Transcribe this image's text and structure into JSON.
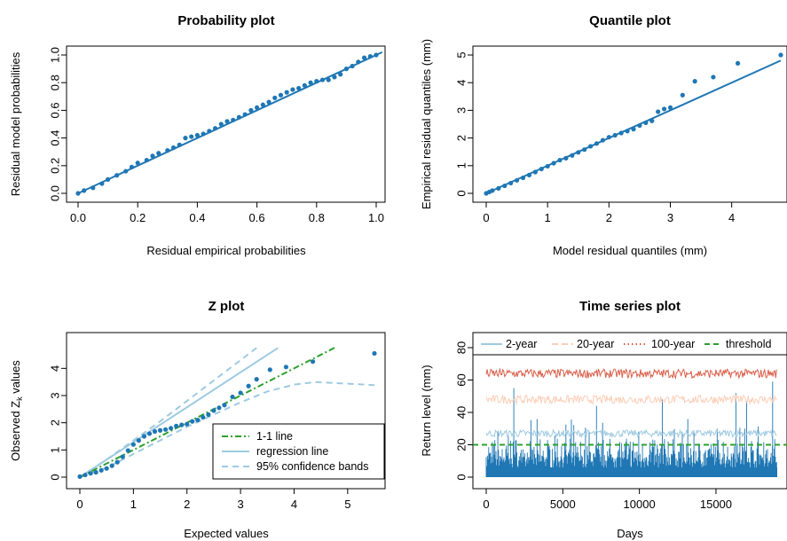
{
  "colors": {
    "points": "#1f77b4",
    "line": "#1f77b4",
    "one_to_one": "#2ca02c",
    "regression": "#9ecae1",
    "bands": "#9ecae1",
    "level2": "#9ecae1",
    "level20": "#fdcdb5",
    "level100": "#d95f4a",
    "threshold": "#2ca02c",
    "series": "#1f77b4"
  },
  "chart_data": [
    {
      "type": "scatter",
      "title": "Probability plot",
      "xlabel": "Residual empirical probabilities",
      "ylabel": "Residual model probabilities",
      "xlim": [
        0,
        1
      ],
      "ylim": [
        0,
        1
      ],
      "xticks": [
        "0.0",
        "0.2",
        "0.4",
        "0.6",
        "0.8",
        "1.0"
      ],
      "yticks": [
        "0.0",
        "0.2",
        "0.4",
        "0.6",
        "0.8",
        "1.0"
      ],
      "reference_line": "1-1",
      "points": [
        [
          0.0,
          0.0
        ],
        [
          0.02,
          0.02
        ],
        [
          0.05,
          0.04
        ],
        [
          0.08,
          0.07
        ],
        [
          0.1,
          0.1
        ],
        [
          0.13,
          0.13
        ],
        [
          0.16,
          0.16
        ],
        [
          0.18,
          0.19
        ],
        [
          0.2,
          0.22
        ],
        [
          0.23,
          0.24
        ],
        [
          0.25,
          0.27
        ],
        [
          0.27,
          0.29
        ],
        [
          0.3,
          0.31
        ],
        [
          0.32,
          0.33
        ],
        [
          0.34,
          0.35
        ],
        [
          0.36,
          0.4
        ],
        [
          0.38,
          0.41
        ],
        [
          0.4,
          0.42
        ],
        [
          0.42,
          0.43
        ],
        [
          0.44,
          0.45
        ],
        [
          0.46,
          0.47
        ],
        [
          0.48,
          0.5
        ],
        [
          0.5,
          0.52
        ],
        [
          0.52,
          0.53
        ],
        [
          0.54,
          0.55
        ],
        [
          0.56,
          0.57
        ],
        [
          0.58,
          0.6
        ],
        [
          0.6,
          0.62
        ],
        [
          0.62,
          0.64
        ],
        [
          0.64,
          0.66
        ],
        [
          0.66,
          0.69
        ],
        [
          0.68,
          0.71
        ],
        [
          0.7,
          0.73
        ],
        [
          0.72,
          0.75
        ],
        [
          0.74,
          0.76
        ],
        [
          0.76,
          0.78
        ],
        [
          0.78,
          0.8
        ],
        [
          0.8,
          0.81
        ],
        [
          0.82,
          0.82
        ],
        [
          0.84,
          0.82
        ],
        [
          0.86,
          0.84
        ],
        [
          0.88,
          0.86
        ],
        [
          0.9,
          0.9
        ],
        [
          0.92,
          0.92
        ],
        [
          0.94,
          0.95
        ],
        [
          0.96,
          0.98
        ],
        [
          0.98,
          0.99
        ],
        [
          1.0,
          1.0
        ]
      ]
    },
    {
      "type": "scatter",
      "title": "Quantile plot",
      "xlabel": "Model residual quantiles (mm)",
      "ylabel": "Empirical residual quantiles (mm)",
      "xlim": [
        0,
        4.8
      ],
      "ylim": [
        0,
        5
      ],
      "xticks": [
        "0",
        "1",
        "2",
        "3",
        "4"
      ],
      "yticks": [
        "0",
        "1",
        "2",
        "3",
        "4",
        "5"
      ],
      "reference_line": "1-1",
      "points": [
        [
          0.0,
          0.0
        ],
        [
          0.05,
          0.05
        ],
        [
          0.1,
          0.1
        ],
        [
          0.2,
          0.18
        ],
        [
          0.3,
          0.27
        ],
        [
          0.4,
          0.37
        ],
        [
          0.5,
          0.47
        ],
        [
          0.6,
          0.56
        ],
        [
          0.7,
          0.66
        ],
        [
          0.8,
          0.77
        ],
        [
          0.9,
          0.88
        ],
        [
          1.0,
          0.98
        ],
        [
          1.1,
          1.09
        ],
        [
          1.2,
          1.2
        ],
        [
          1.3,
          1.27
        ],
        [
          1.4,
          1.37
        ],
        [
          1.5,
          1.48
        ],
        [
          1.6,
          1.58
        ],
        [
          1.7,
          1.7
        ],
        [
          1.8,
          1.8
        ],
        [
          1.9,
          1.92
        ],
        [
          2.0,
          2.03
        ],
        [
          2.1,
          2.1
        ],
        [
          2.2,
          2.18
        ],
        [
          2.3,
          2.25
        ],
        [
          2.4,
          2.32
        ],
        [
          2.5,
          2.45
        ],
        [
          2.6,
          2.55
        ],
        [
          2.7,
          2.62
        ],
        [
          2.8,
          2.95
        ],
        [
          2.9,
          3.05
        ],
        [
          3.0,
          3.1
        ],
        [
          3.2,
          3.55
        ],
        [
          3.4,
          4.05
        ],
        [
          3.7,
          4.2
        ],
        [
          4.1,
          4.7
        ],
        [
          4.8,
          5.0
        ]
      ]
    },
    {
      "type": "scatter",
      "title": "Z plot",
      "xlabel": "Expected values",
      "ylabel": "Observed Z",
      "ylabel_sub": "k",
      "ylabel_suffix": " values",
      "xlim": [
        0,
        5.5
      ],
      "ylim": [
        0,
        4.5
      ],
      "xticks": [
        "0",
        "1",
        "2",
        "3",
        "4",
        "5"
      ],
      "yticks": [
        "0",
        "1",
        "2",
        "3",
        "4"
      ],
      "legend": [
        "1-1 line",
        "regression line",
        "95% confidence bands"
      ],
      "legend_position": "bottom-right",
      "regression_line": [
        [
          0,
          0
        ],
        [
          3.7,
          4.75
        ]
      ],
      "confidence_upper": [
        [
          0,
          0
        ],
        [
          0.5,
          0.65
        ],
        [
          1,
          1.35
        ],
        [
          1.5,
          2.05
        ],
        [
          2,
          2.8
        ],
        [
          2.5,
          3.55
        ],
        [
          3,
          4.3
        ],
        [
          3.3,
          4.75
        ]
      ],
      "confidence_lower": [
        [
          0,
          0
        ],
        [
          0.5,
          0.35
        ],
        [
          1,
          0.85
        ],
        [
          1.5,
          1.35
        ],
        [
          2,
          1.85
        ],
        [
          2.5,
          2.3
        ],
        [
          3,
          2.75
        ],
        [
          3.5,
          3.15
        ],
        [
          4,
          3.4
        ],
        [
          4.4,
          3.5
        ],
        [
          5.5,
          3.38
        ]
      ],
      "points": [
        [
          0.0,
          0.02
        ],
        [
          0.1,
          0.08
        ],
        [
          0.2,
          0.14
        ],
        [
          0.3,
          0.18
        ],
        [
          0.4,
          0.25
        ],
        [
          0.5,
          0.32
        ],
        [
          0.6,
          0.42
        ],
        [
          0.7,
          0.55
        ],
        [
          0.8,
          0.75
        ],
        [
          0.9,
          0.98
        ],
        [
          1.0,
          1.2
        ],
        [
          1.1,
          1.35
        ],
        [
          1.2,
          1.5
        ],
        [
          1.3,
          1.6
        ],
        [
          1.4,
          1.68
        ],
        [
          1.5,
          1.72
        ],
        [
          1.6,
          1.75
        ],
        [
          1.7,
          1.8
        ],
        [
          1.8,
          1.88
        ],
        [
          1.9,
          1.92
        ],
        [
          2.0,
          1.95
        ],
        [
          2.1,
          2.05
        ],
        [
          2.2,
          2.1
        ],
        [
          2.3,
          2.2
        ],
        [
          2.4,
          2.3
        ],
        [
          2.5,
          2.45
        ],
        [
          2.6,
          2.55
        ],
        [
          2.7,
          2.65
        ],
        [
          2.85,
          2.95
        ],
        [
          3.0,
          3.1
        ],
        [
          3.15,
          3.35
        ],
        [
          3.3,
          3.6
        ],
        [
          3.55,
          3.95
        ],
        [
          3.85,
          4.05
        ],
        [
          4.35,
          4.25
        ],
        [
          5.5,
          4.55
        ]
      ]
    },
    {
      "type": "line",
      "title": "Time series plot",
      "xlabel": "Days",
      "ylabel": "Return level (mm)",
      "xlim": [
        0,
        19000
      ],
      "ylim": [
        0,
        80
      ],
      "xticks": [
        "0",
        "5000",
        "10000",
        "15000"
      ],
      "yticks": [
        "0",
        "20",
        "40",
        "60",
        "80"
      ],
      "legend": [
        "2-year",
        "20-year",
        "100-year",
        "threshold"
      ],
      "legend_position": "top",
      "n_days": 19000,
      "threshold": 20,
      "levels": {
        "2-year": 27,
        "20-year": 48,
        "100-year": 64
      },
      "notable_peaks": [
        [
          1800,
          55
        ],
        [
          7200,
          44
        ],
        [
          11500,
          48
        ],
        [
          16300,
          52
        ],
        [
          17000,
          47
        ],
        [
          18700,
          59
        ]
      ]
    }
  ]
}
